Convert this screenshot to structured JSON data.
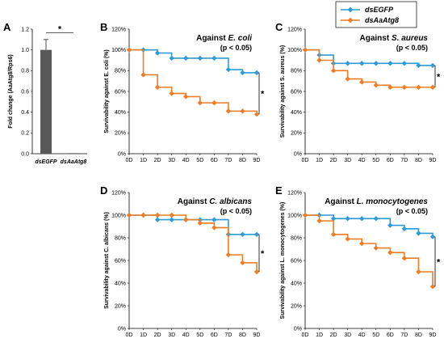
{
  "legend": {
    "entries": [
      {
        "name": "dsEGFP",
        "color": "#2e9ad6",
        "marker": "diamond"
      },
      {
        "name": "dsAaAtg8",
        "color": "#f07c23",
        "marker": "diamond"
      }
    ]
  },
  "chart_data": [
    {
      "panel": "A",
      "type": "bar",
      "ylabel": "Fold change (AaAtg8/Rps6)",
      "categories": [
        "dsEGFP",
        "dsAaAtg8"
      ],
      "values": [
        1.0,
        0.005
      ],
      "errors": [
        0.1,
        0.0
      ],
      "ylim": [
        0,
        1.2
      ],
      "yticks": [
        "0.0",
        "0.2",
        "0.4",
        "0.6",
        "0.8",
        "1.0",
        "1.2"
      ],
      "bar_color": "#595959",
      "significance": "*"
    },
    {
      "panel": "B",
      "type": "line",
      "title": "Against E. coli",
      "title_prefix": "Against ",
      "title_italic": "E. coli",
      "pvalue": "(p < 0.05)",
      "ylabel": "Survivability against E. coli (%)",
      "x": [
        "0D",
        "1D",
        "2D",
        "3D",
        "4D",
        "5D",
        "6D",
        "7D",
        "8D",
        "9D"
      ],
      "ylim": [
        0,
        120
      ],
      "yticks": [
        "0%",
        "20%",
        "40%",
        "60%",
        "80%",
        "100%",
        "120%"
      ],
      "series": [
        {
          "name": "dsEGFP",
          "values": [
            100,
            100,
            97,
            92,
            92,
            92,
            92,
            81,
            78,
            78
          ]
        },
        {
          "name": "dsAaAtg8",
          "values": [
            100,
            76,
            64,
            58,
            55,
            49,
            49,
            41,
            41,
            38
          ]
        }
      ],
      "significance": "*"
    },
    {
      "panel": "C",
      "type": "line",
      "title": "Against S. aureus",
      "title_prefix": "Against ",
      "title_italic": "S. aureus",
      "pvalue": "(p < 0.05)",
      "ylabel": "Survivability against S. aureus (%)",
      "x": [
        "0D",
        "1D",
        "2D",
        "3D",
        "4D",
        "5D",
        "6D",
        "7D",
        "8D",
        "9D"
      ],
      "ylim": [
        0,
        120
      ],
      "yticks": [
        "0%",
        "20%",
        "40%",
        "60%",
        "80%",
        "100%",
        "120%"
      ],
      "series": [
        {
          "name": "dsEGFP",
          "values": [
            100,
            95,
            87,
            87,
            87,
            87,
            87,
            87,
            85,
            85
          ]
        },
        {
          "name": "dsAaAtg8",
          "values": [
            100,
            90,
            80,
            72,
            69,
            66,
            64,
            64,
            64,
            64
          ]
        }
      ],
      "significance": "*"
    },
    {
      "panel": "D",
      "type": "line",
      "title": "Against C. albicans",
      "title_prefix": "Against ",
      "title_italic": "C. albicans",
      "pvalue": "(p < 0.05)",
      "ylabel": "Survivability against C. albicans (%)",
      "x": [
        "0D",
        "1D",
        "2D",
        "3D",
        "4D",
        "5D",
        "6D",
        "7D",
        "8D",
        "9D"
      ],
      "ylim": [
        0,
        120
      ],
      "yticks": [
        "0%",
        "20%",
        "40%",
        "60%",
        "80%",
        "100%",
        "120%"
      ],
      "series": [
        {
          "name": "dsEGFP",
          "values": [
            100,
            100,
            96,
            96,
            96,
            96,
            96,
            83,
            83,
            83
          ]
        },
        {
          "name": "dsAaAtg8",
          "values": [
            100,
            100,
            100,
            100,
            96,
            93,
            89,
            65,
            58,
            50
          ]
        }
      ],
      "significance": "*"
    },
    {
      "panel": "E",
      "type": "line",
      "title": "Against L. monocytogenes",
      "title_prefix": "Against ",
      "title_italic": "L. monocytogenes",
      "pvalue": "(p < 0.05)",
      "ylabel": "Survivability against L. monocytogenes (%)",
      "x": [
        "0D",
        "1D",
        "2D",
        "3D",
        "4D",
        "5D",
        "6D",
        "7D",
        "8D",
        "9D"
      ],
      "ylim": [
        0,
        120
      ],
      "yticks": [
        "0%",
        "20%",
        "40%",
        "60%",
        "80%",
        "100%",
        "120%"
      ],
      "series": [
        {
          "name": "dsEGFP",
          "values": [
            100,
            100,
            97,
            97,
            97,
            97,
            91,
            88,
            84,
            81
          ]
        },
        {
          "name": "dsAaAtg8",
          "values": [
            100,
            95,
            83,
            79,
            75,
            71,
            67,
            62,
            50,
            37
          ]
        }
      ],
      "significance": "*"
    }
  ]
}
